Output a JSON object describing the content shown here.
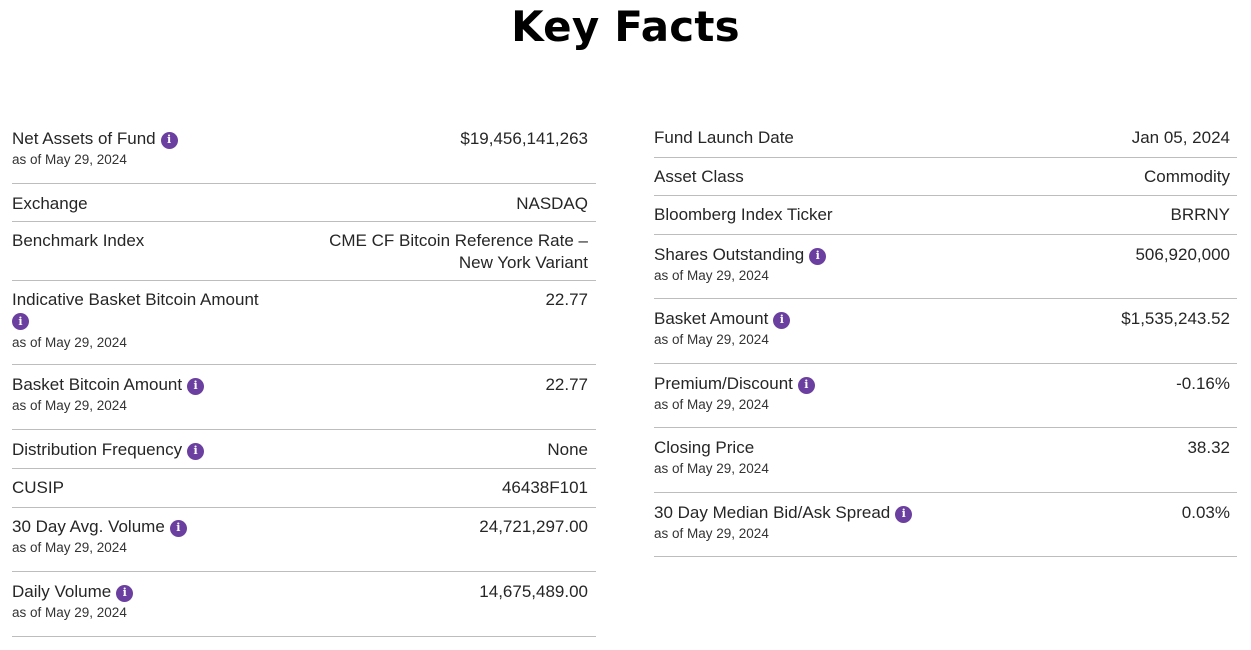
{
  "page_title": "Key Facts",
  "accent_color": "#6b3fa0",
  "info_icon_glyph": "i",
  "left": [
    {
      "label": "Net Assets of Fund",
      "value": "$19,456,141,263",
      "as_of": "as of May 29, 2024",
      "info": true
    },
    {
      "label": "Exchange",
      "value": "NASDAQ"
    },
    {
      "label": "Benchmark Index",
      "value": "CME CF Bitcoin Reference Rate –",
      "value2": "New York Variant"
    },
    {
      "label": "Indicative Basket Bitcoin Amount",
      "value": "22.77",
      "as_of": "as of May 29, 2024",
      "info": true
    },
    {
      "label": "Basket Bitcoin Amount",
      "value": "22.77",
      "as_of": "as of May 29, 2024",
      "info": true
    },
    {
      "label": "Distribution Frequency",
      "value": "None",
      "info": true
    },
    {
      "label": "CUSIP",
      "value": "46438F101"
    },
    {
      "label": "30 Day Avg. Volume",
      "value": "24,721,297.00",
      "as_of": "as of May 29, 2024",
      "info": true
    },
    {
      "label": "Daily Volume",
      "value": "14,675,489.00",
      "as_of": "as of May 29, 2024",
      "info": true
    }
  ],
  "right": [
    {
      "label": "Fund Launch Date",
      "value": "Jan 05, 2024"
    },
    {
      "label": "Asset Class",
      "value": "Commodity"
    },
    {
      "label": "Bloomberg Index Ticker",
      "value": "BRRNY"
    },
    {
      "label": "Shares Outstanding",
      "value": "506,920,000",
      "as_of": "as of May 29, 2024",
      "info": true
    },
    {
      "label": "Basket Amount",
      "value": "$1,535,243.52",
      "as_of": "as of May 29, 2024",
      "info": true
    },
    {
      "label": "Premium/Discount",
      "value": "-0.16%",
      "as_of": "as of May 29, 2024",
      "info": true
    },
    {
      "label": "Closing Price",
      "value": "38.32",
      "as_of": "as of May 29, 2024"
    },
    {
      "label": "30 Day Median Bid/Ask Spread",
      "value": "0.03%",
      "as_of": "as of May 29, 2024",
      "info": true
    }
  ]
}
